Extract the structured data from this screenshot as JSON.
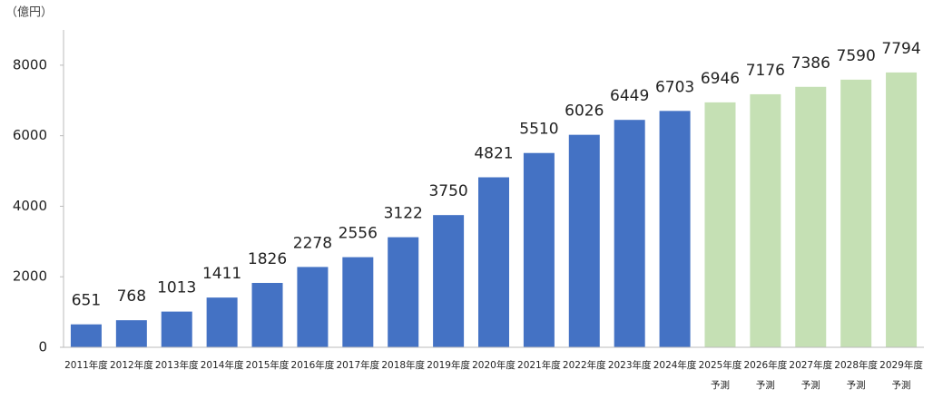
{
  "chart_data": {
    "type": "bar",
    "y_unit": "（億円）",
    "categories": [
      "2011年度",
      "2012年度",
      "2013年度",
      "2014年度",
      "2015年度",
      "2016年度",
      "2017年度",
      "2018年度",
      "2019年度",
      "2020年度",
      "2021年度",
      "2022年度",
      "2023年度",
      "2024年度",
      [
        "2025年度",
        "予測"
      ],
      [
        "2026年度",
        "予測"
      ],
      [
        "2027年度",
        "予測"
      ],
      [
        "2028年度",
        "予測"
      ],
      [
        "2029年度",
        "予測"
      ]
    ],
    "values": [
      651,
      768,
      1013,
      1411,
      1826,
      2278,
      2556,
      3122,
      3750,
      4821,
      5510,
      6026,
      6449,
      6703,
      6946,
      7176,
      7386,
      7590,
      7794
    ],
    "colors": [
      "#4472c4",
      "#4472c4",
      "#4472c4",
      "#4472c4",
      "#4472c4",
      "#4472c4",
      "#4472c4",
      "#4472c4",
      "#4472c4",
      "#4472c4",
      "#4472c4",
      "#4472c4",
      "#4472c4",
      "#4472c4",
      "#c5e0b4",
      "#c5e0b4",
      "#c5e0b4",
      "#c5e0b4",
      "#c5e0b4"
    ],
    "ylim": [
      0,
      9000
    ],
    "yticks": [
      0,
      2000,
      4000,
      6000,
      8000
    ],
    "grid": false
  }
}
